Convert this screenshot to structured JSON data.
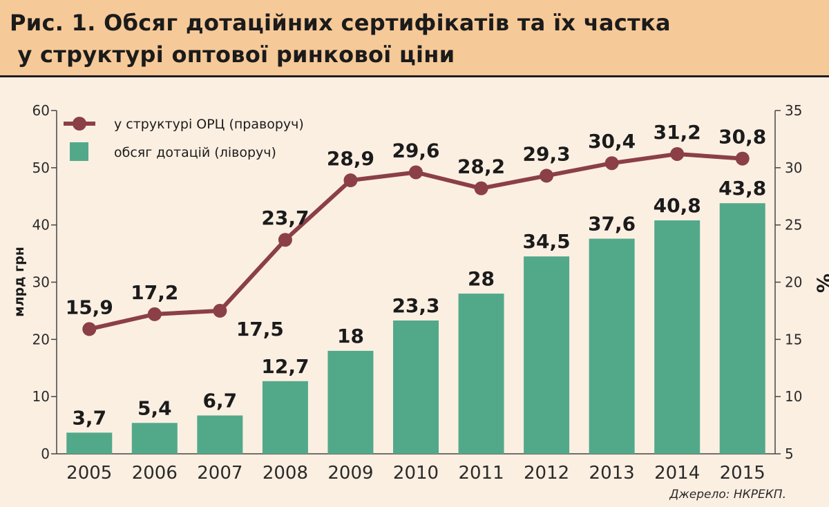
{
  "title": {
    "line1": "Рис. 1. Обсяг дотаційних сертифікатів та їх частка",
    "line2": " у структурі оптової ринкової ціни"
  },
  "source": "Джерело: НКРЕКП.",
  "colors": {
    "bar": "#52a98a",
    "line": "#8b3f47",
    "title_band": "#f6c998",
    "background": "#fbefe2",
    "axis": "#444444",
    "text": "#1b1b1b"
  },
  "chart_data": {
    "type": "bar",
    "title": "Рис. 1. Обсяг дотаційних сертифікатів та їх частка у структурі оптової ринкової ціни",
    "categories": [
      "2005",
      "2006",
      "2007",
      "2008",
      "2009",
      "2010",
      "2011",
      "2012",
      "2013",
      "2014",
      "2015"
    ],
    "series": [
      {
        "name": "обсяг дотацій (ліворуч)",
        "type": "bar",
        "axis": "left",
        "values": [
          3.7,
          5.4,
          6.7,
          12.7,
          18,
          23.3,
          28,
          34.5,
          37.6,
          40.8,
          43.8
        ],
        "labels": [
          "3,7",
          "5,4",
          "6,7",
          "12,7",
          "18",
          "23,3",
          "28",
          "34,5",
          "37,6",
          "40,8",
          "43,8"
        ]
      },
      {
        "name": "у структурі ОРЦ (праворуч)",
        "type": "line",
        "axis": "right",
        "values": [
          15.9,
          17.2,
          17.5,
          23.7,
          28.9,
          29.6,
          28.2,
          29.3,
          30.4,
          31.2,
          30.8
        ],
        "labels": [
          "15,9",
          "17,2",
          "17,5",
          "23,7",
          "28,9",
          "29,6",
          "28,2",
          "29,3",
          "30,4",
          "31,2",
          "30,8"
        ]
      }
    ],
    "ylabel_left": "млрд грн",
    "ylabel_right": "%",
    "ylim_left": [
      0,
      60
    ],
    "yticks_left": [
      "0",
      "10",
      "20",
      "30",
      "40",
      "50",
      "60"
    ],
    "ylim_right": [
      5,
      35
    ],
    "yticks_right": [
      "5",
      "10",
      "15",
      "20",
      "25",
      "30",
      "35"
    ],
    "grid": false,
    "legend_position": "top-left"
  }
}
